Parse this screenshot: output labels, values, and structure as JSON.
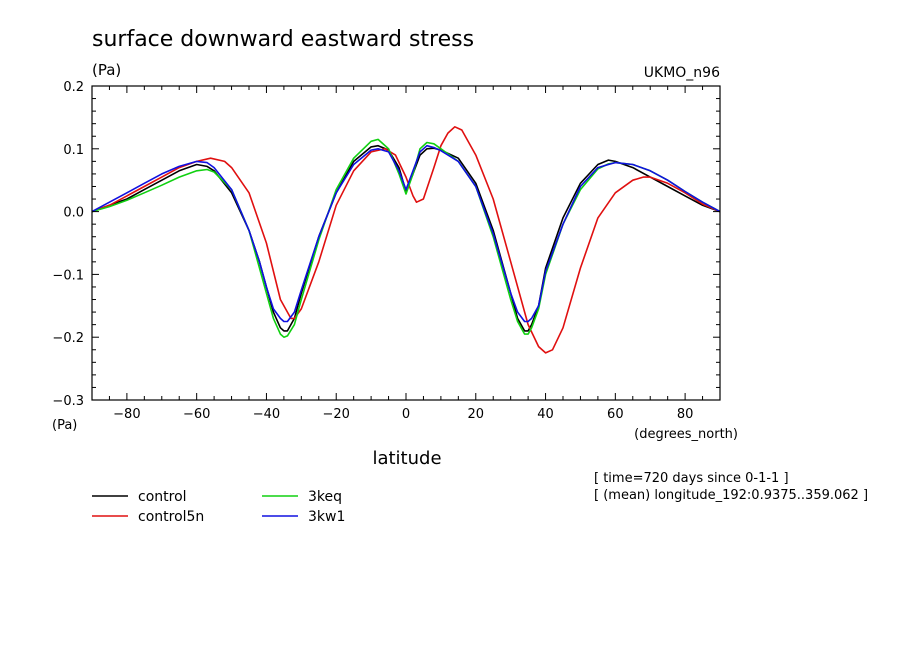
{
  "chart_data": {
    "type": "line",
    "title": "surface downward eastward stress",
    "units_top": "(Pa)",
    "model": "UKMO_n96",
    "units_left": "(Pa)",
    "xlabel": "latitude",
    "xunits": "(degrees_north)",
    "xlim": [
      -90,
      90
    ],
    "ylim": [
      -0.3,
      0.2
    ],
    "xticks": [
      -80,
      -60,
      -40,
      -20,
      0,
      20,
      40,
      60,
      80
    ],
    "yticks": [
      -0.3,
      -0.2,
      -0.1,
      0.0,
      0.1,
      0.2
    ],
    "ytick_labels": [
      "−0.3",
      "−0.2",
      "−0.1",
      "0.0",
      "0.1",
      "0.2"
    ],
    "xtick_labels": [
      "−80",
      "−60",
      "−40",
      "−20",
      "0",
      "20",
      "40",
      "60",
      "80"
    ],
    "info_lines": [
      "[ time=720 days since 0-1-1 ]",
      "[ (mean) longitude_192:0.9375..359.062 ]"
    ],
    "legend_placement": "bottom-left",
    "series": [
      {
        "name": "control",
        "color": "#000000",
        "x": [
          -90,
          -85,
          -80,
          -75,
          -70,
          -65,
          -60,
          -57,
          -55,
          -50,
          -45,
          -42,
          -40,
          -38,
          -36,
          -35,
          -34,
          -32,
          -30,
          -25,
          -20,
          -15,
          -10,
          -8,
          -5,
          -2,
          0,
          2,
          4,
          6,
          8,
          10,
          15,
          20,
          25,
          30,
          32,
          34,
          35,
          36,
          38,
          40,
          45,
          50,
          55,
          58,
          60,
          65,
          70,
          75,
          80,
          85,
          90
        ],
        "y": [
          0.0,
          0.01,
          0.02,
          0.035,
          0.05,
          0.065,
          0.075,
          0.072,
          0.065,
          0.03,
          -0.03,
          -0.08,
          -0.12,
          -0.16,
          -0.185,
          -0.19,
          -0.19,
          -0.17,
          -0.13,
          -0.04,
          0.03,
          0.08,
          0.103,
          0.105,
          0.098,
          0.07,
          0.032,
          0.06,
          0.09,
          0.1,
          0.101,
          0.098,
          0.085,
          0.045,
          -0.03,
          -0.13,
          -0.17,
          -0.19,
          -0.19,
          -0.18,
          -0.15,
          -0.09,
          -0.01,
          0.045,
          0.075,
          0.082,
          0.08,
          0.07,
          0.055,
          0.04,
          0.025,
          0.01,
          0.0
        ]
      },
      {
        "name": "control5n",
        "color": "#e01010",
        "x": [
          -90,
          -85,
          -80,
          -75,
          -70,
          -65,
          -60,
          -56,
          -52,
          -50,
          -45,
          -40,
          -36,
          -33,
          -32,
          -30,
          -25,
          -20,
          -15,
          -10,
          -6,
          -3,
          0,
          2,
          3,
          5,
          8,
          10,
          12,
          14,
          16,
          20,
          25,
          30,
          35,
          38,
          40,
          42,
          45,
          50,
          55,
          60,
          65,
          68,
          70,
          75,
          80,
          85,
          90
        ],
        "y": [
          0.0,
          0.01,
          0.025,
          0.04,
          0.055,
          0.07,
          0.08,
          0.085,
          0.08,
          0.07,
          0.03,
          -0.05,
          -0.14,
          -0.17,
          -0.17,
          -0.155,
          -0.08,
          0.01,
          0.065,
          0.095,
          0.1,
          0.09,
          0.055,
          0.025,
          0.015,
          0.02,
          0.07,
          0.105,
          0.125,
          0.135,
          0.13,
          0.09,
          0.02,
          -0.08,
          -0.18,
          -0.215,
          -0.225,
          -0.22,
          -0.185,
          -0.09,
          -0.01,
          0.03,
          0.05,
          0.055,
          0.055,
          0.045,
          0.03,
          0.012,
          0.0
        ]
      },
      {
        "name": "3keq",
        "color": "#10d010",
        "x": [
          -90,
          -85,
          -80,
          -75,
          -70,
          -65,
          -60,
          -57,
          -55,
          -50,
          -45,
          -42,
          -40,
          -38,
          -36,
          -35,
          -34,
          -32,
          -30,
          -25,
          -20,
          -15,
          -10,
          -8,
          -5,
          -2,
          0,
          2,
          4,
          6,
          8,
          10,
          15,
          20,
          25,
          30,
          32,
          34,
          35,
          36,
          38,
          40,
          45,
          50,
          55,
          58,
          60,
          65,
          70,
          75,
          80,
          85,
          90
        ],
        "y": [
          0.0,
          0.008,
          0.018,
          0.03,
          0.042,
          0.055,
          0.065,
          0.067,
          0.063,
          0.035,
          -0.03,
          -0.09,
          -0.13,
          -0.17,
          -0.195,
          -0.2,
          -0.198,
          -0.18,
          -0.14,
          -0.045,
          0.035,
          0.085,
          0.112,
          0.115,
          0.1,
          0.06,
          0.028,
          0.06,
          0.1,
          0.11,
          0.108,
          0.1,
          0.08,
          0.04,
          -0.04,
          -0.14,
          -0.175,
          -0.195,
          -0.195,
          -0.185,
          -0.155,
          -0.1,
          -0.02,
          0.035,
          0.068,
          0.076,
          0.078,
          0.075,
          0.065,
          0.05,
          0.032,
          0.015,
          0.0
        ]
      },
      {
        "name": "3kw1",
        "color": "#1010e0",
        "x": [
          -90,
          -85,
          -80,
          -75,
          -70,
          -65,
          -60,
          -57,
          -55,
          -50,
          -45,
          -42,
          -40,
          -38,
          -36,
          -35,
          -34,
          -32,
          -30,
          -25,
          -20,
          -15,
          -10,
          -8,
          -5,
          -2,
          0,
          2,
          4,
          6,
          8,
          10,
          15,
          20,
          25,
          30,
          32,
          34,
          35,
          36,
          38,
          40,
          45,
          50,
          55,
          58,
          60,
          65,
          70,
          75,
          80,
          85,
          90
        ],
        "y": [
          0.0,
          0.015,
          0.03,
          0.045,
          0.06,
          0.072,
          0.08,
          0.078,
          0.07,
          0.035,
          -0.03,
          -0.08,
          -0.12,
          -0.155,
          -0.17,
          -0.175,
          -0.175,
          -0.16,
          -0.125,
          -0.04,
          0.03,
          0.075,
          0.098,
          0.1,
          0.095,
          0.065,
          0.035,
          0.065,
          0.095,
          0.105,
          0.102,
          0.097,
          0.08,
          0.04,
          -0.035,
          -0.13,
          -0.16,
          -0.175,
          -0.175,
          -0.17,
          -0.15,
          -0.095,
          -0.02,
          0.04,
          0.07,
          0.075,
          0.078,
          0.075,
          0.065,
          0.05,
          0.032,
          0.015,
          0.0
        ]
      }
    ]
  }
}
